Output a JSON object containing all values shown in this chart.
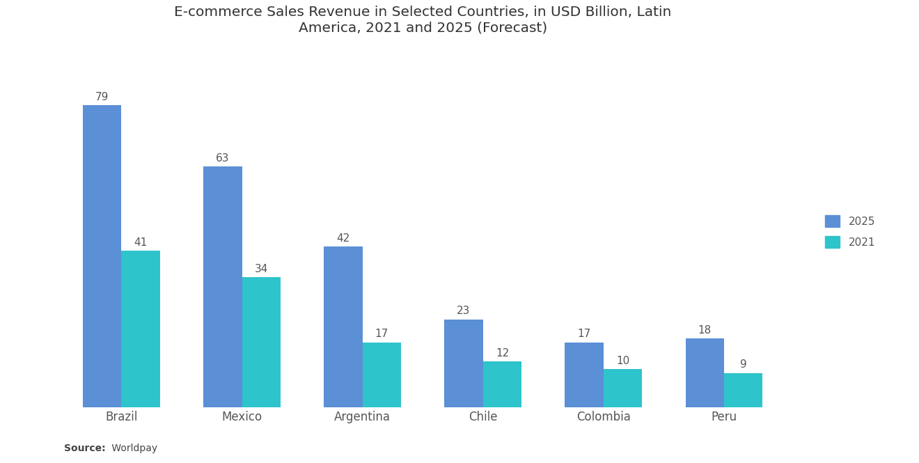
{
  "title": "E-commerce Sales Revenue in Selected Countries, in USD Billion, Latin\nAmerica, 2021 and 2025 (Forecast)",
  "categories": [
    "Brazil",
    "Mexico",
    "Argentina",
    "Chile",
    "Colombia",
    "Peru"
  ],
  "values_2025": [
    79,
    63,
    42,
    23,
    17,
    18
  ],
  "values_2021": [
    41,
    34,
    17,
    12,
    10,
    9
  ],
  "color_2025": "#5B8FD6",
  "color_2021": "#2EC4CC",
  "background_color": "#FFFFFF",
  "title_fontsize": 14.5,
  "label_fontsize": 11,
  "source_bold": "Source:",
  "source_rest": " Worldpay",
  "legend_labels": [
    "2025",
    "2021"
  ],
  "bar_width": 0.32,
  "ylim_max": 92
}
